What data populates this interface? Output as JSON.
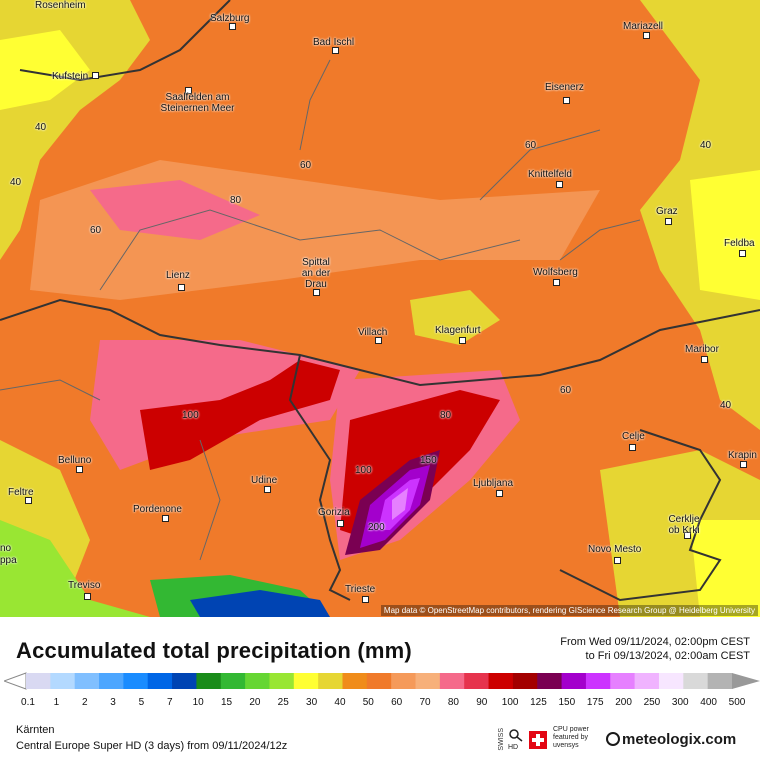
{
  "map": {
    "attribution": "Map data © OpenStreetMap contributors, rendering GIScience Research Group @ Heidelberg University",
    "cities": [
      {
        "name": "Rosenheim"
      },
      {
        "name": "Salzburg"
      },
      {
        "name": "Bad Ischl"
      },
      {
        "name": "Mariazell"
      },
      {
        "name": "Kufstein"
      },
      {
        "name": "Saalfelden am Steinernen Meer"
      },
      {
        "name": "Eisenerz"
      },
      {
        "name": "Knittelfeld"
      },
      {
        "name": "Graz"
      },
      {
        "name": "Feldba"
      },
      {
        "name": "Lienz"
      },
      {
        "name": "Spittal an der Drau"
      },
      {
        "name": "Wolfsberg"
      },
      {
        "name": "Villach"
      },
      {
        "name": "Klagenfurt"
      },
      {
        "name": "Maribor"
      },
      {
        "name": "Celje"
      },
      {
        "name": "Krapin"
      },
      {
        "name": "Belluno"
      },
      {
        "name": "Feltre"
      },
      {
        "name": "Udine"
      },
      {
        "name": "Pordenone"
      },
      {
        "name": "Gorizia"
      },
      {
        "name": "Ljubljana"
      },
      {
        "name": "Cerklje ob Krki"
      },
      {
        "name": "Novo Mesto"
      },
      {
        "name": "Treviso"
      },
      {
        "name": "Trieste"
      },
      {
        "name": "no"
      },
      {
        "name": "ppa"
      }
    ],
    "contour_labels": [
      "40",
      "60",
      "80",
      "100",
      "150",
      "200"
    ]
  },
  "legend": {
    "title": "Accumulated total precipitation (mm)",
    "from": "From Wed 09/11/2024, 02:00pm CEST",
    "to": "to Fri 09/13/2024, 02:00am CEST",
    "ticks": [
      "0.1",
      "1",
      "2",
      "3",
      "5",
      "7",
      "10",
      "15",
      "20",
      "25",
      "30",
      "40",
      "50",
      "60",
      "70",
      "80",
      "90",
      "100",
      "125",
      "150",
      "175",
      "200",
      "250",
      "300",
      "400",
      "500"
    ],
    "colors": [
      "#d9d9f2",
      "#b3d9ff",
      "#80bfff",
      "#4da6ff",
      "#1a8cff",
      "#0066e6",
      "#0044b3",
      "#1a8c1a",
      "#33b833",
      "#66d633",
      "#99e633",
      "#ffff33",
      "#e6d633",
      "#f08c1a",
      "#f07a2a",
      "#f59a5a",
      "#f7b07a",
      "#f56a8a",
      "#e6334d",
      "#cc0000",
      "#a30000",
      "#7a0052",
      "#a300cc",
      "#cc33ff",
      "#e680ff",
      "#f0b3ff",
      "#f7e6ff",
      "#d9d9d9",
      "#b3b3b3"
    ]
  },
  "footer": {
    "region": "Kärnten",
    "model": "Central Europe Super HD (3 days) from 09/11/2024/12z",
    "swiss": "SWISS",
    "hd": "HD",
    "cpu": "CPU power featured by uvensys",
    "brand": "meteologix.com"
  }
}
